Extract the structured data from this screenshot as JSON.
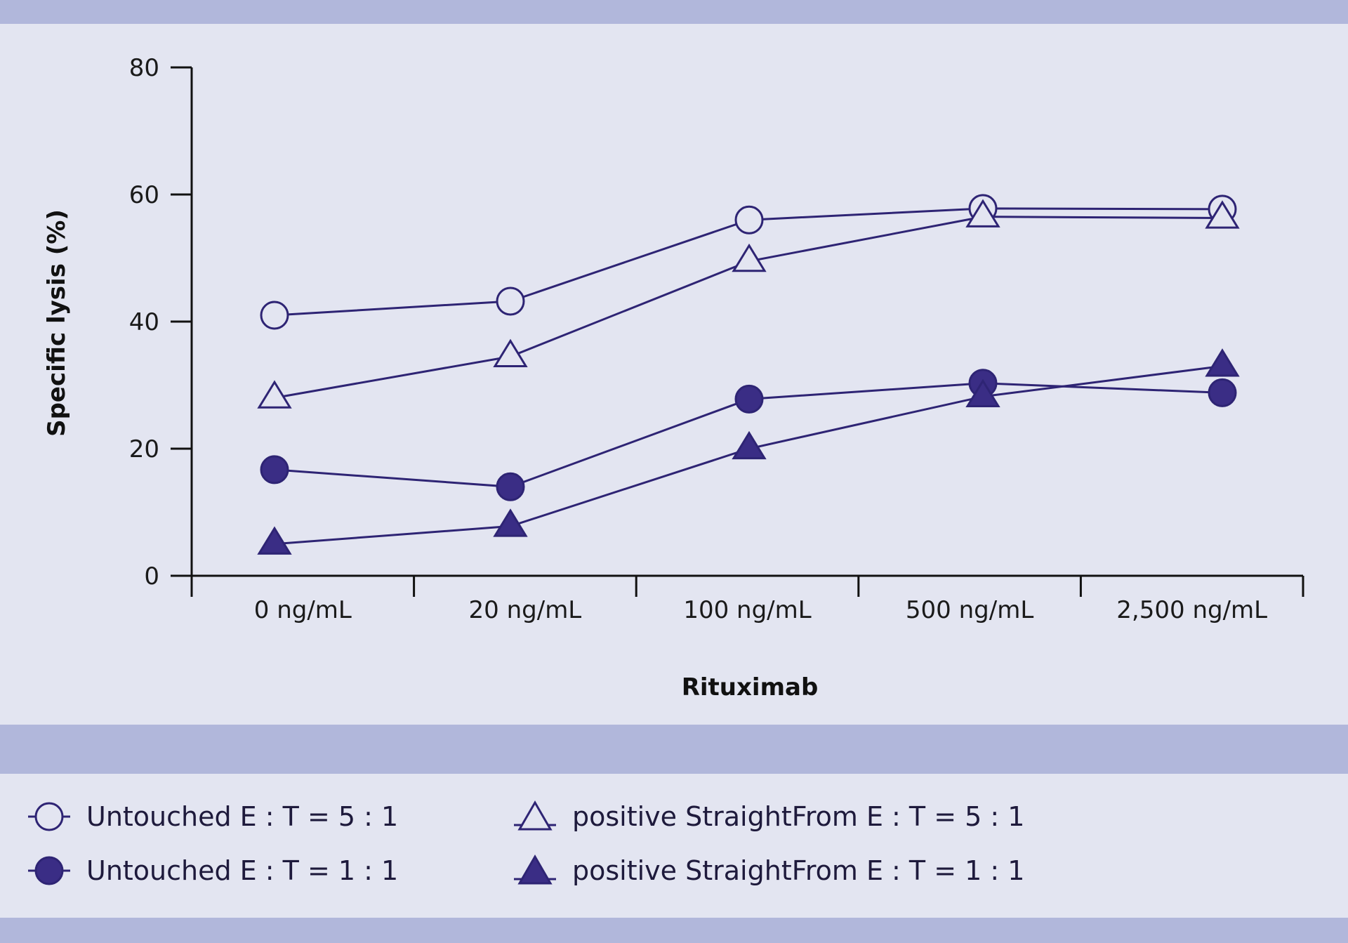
{
  "chart_data": {
    "type": "line",
    "xlabel": "Rituximab",
    "ylabel": "Specific lysis (%)",
    "ylim": [
      0,
      80
    ],
    "yticks": [
      "0",
      "20",
      "40",
      "60",
      "80"
    ],
    "categories": [
      "0 ng/mL",
      "20 ng/mL",
      "100 ng/mL",
      "500 ng/mL",
      "2,500 ng/mL"
    ],
    "grid": false,
    "legend_position": "bottom",
    "line_color": "#2e2474",
    "series": [
      {
        "name": "Untouched E : T = 5 : 1",
        "marker": "circle-open",
        "values": [
          41,
          43.2,
          56,
          57.8,
          57.7
        ]
      },
      {
        "name": "positive StraightFrom E : T = 5 : 1",
        "marker": "triangle-open",
        "values": [
          28,
          34.5,
          49.5,
          56.5,
          56.3
        ]
      },
      {
        "name": "Untouched E : T = 1 : 1",
        "marker": "circle-filled",
        "values": [
          16.7,
          14,
          27.8,
          30.3,
          28.8
        ]
      },
      {
        "name": "positive StraightFrom E : T = 1 : 1",
        "marker": "triangle-filled",
        "values": [
          5,
          7.8,
          20,
          28.2,
          33
        ]
      }
    ]
  }
}
